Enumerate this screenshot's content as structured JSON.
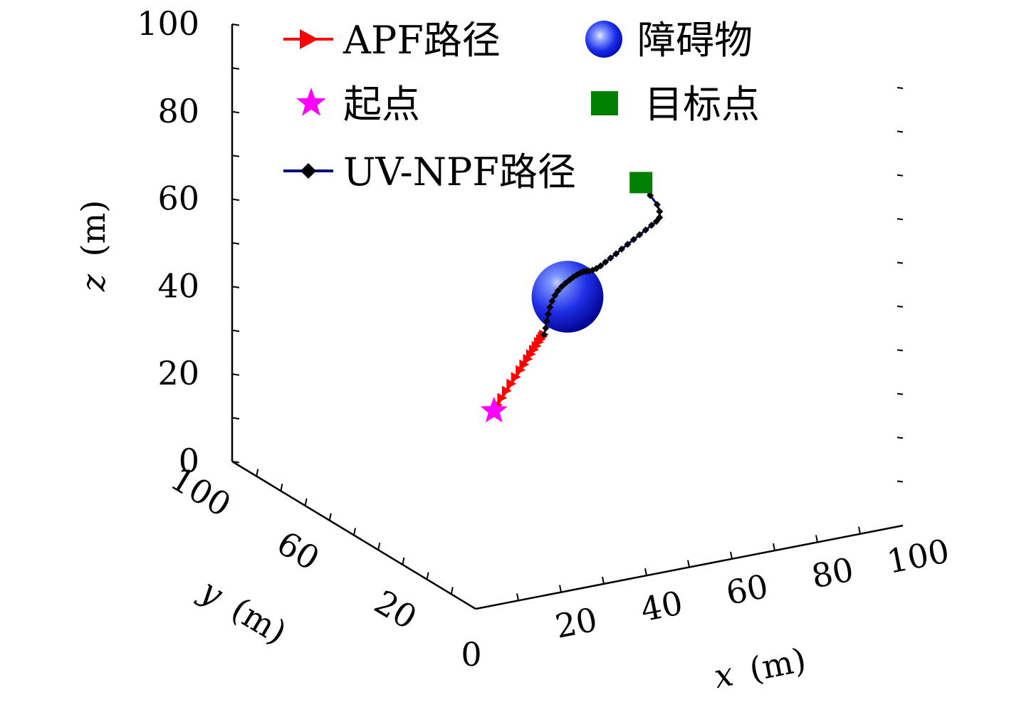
{
  "chart_data": {
    "type": "scatter",
    "projection": "3d",
    "axes": {
      "x": {
        "label_var": "x",
        "label_unit": "(m)",
        "ticks": [
          "0",
          "20",
          "40",
          "60",
          "80",
          "100"
        ],
        "range": [
          0,
          100
        ]
      },
      "y": {
        "label_var": "y",
        "label_unit": "(m)",
        "ticks": [
          "20",
          "60",
          "100"
        ],
        "range": [
          0,
          100
        ]
      },
      "z": {
        "label_var": "z",
        "label_unit": "(m)",
        "ticks": [
          "0",
          "20",
          "40",
          "60",
          "80",
          "100"
        ],
        "range": [
          0,
          100
        ]
      }
    },
    "legend": {
      "placement": "top",
      "entries": [
        {
          "key": "apf",
          "label": "APF路径",
          "color": "#ff0000",
          "marker": "triangle-right"
        },
        {
          "key": "obstacle",
          "label": "障碍物",
          "color": "#0000ee",
          "marker": "sphere"
        },
        {
          "key": "start",
          "label": "起点",
          "color": "#ff00ff",
          "marker": "star"
        },
        {
          "key": "goal",
          "label": "目标点",
          "color": "#008000",
          "marker": "square"
        },
        {
          "key": "uvnpf",
          "label": "UV-NPF路径",
          "color": "#000000",
          "line_color": "#000080",
          "marker": "diamond"
        }
      ]
    },
    "start": {
      "x": 10,
      "y": 10,
      "z": 40
    },
    "goal": {
      "x": 90,
      "y": 90,
      "z": 50
    },
    "obstacle": {
      "x": 50,
      "y": 50,
      "z": 45,
      "r": 12
    },
    "series": [
      {
        "name": "APF路径",
        "color": "#ff0000",
        "marker": "triangle-right",
        "points": [
          [
            12.0,
            12.0,
            40.3
          ],
          [
            14.5,
            14.5,
            40.6
          ],
          [
            17.0,
            17.0,
            40.9
          ],
          [
            19.5,
            19.5,
            41.2
          ],
          [
            22.0,
            22.0,
            41.4
          ],
          [
            24.5,
            24.5,
            41.7
          ],
          [
            26.5,
            26.5,
            41.9
          ],
          [
            28.5,
            28.5,
            42.1
          ],
          [
            30.2,
            30.2,
            42.3
          ],
          [
            31.8,
            31.8,
            42.5
          ],
          [
            33.2,
            33.2,
            42.6
          ],
          [
            34.5,
            34.5,
            42.8
          ],
          [
            35.6,
            35.6,
            42.9
          ],
          [
            36.5,
            36.5,
            43.0
          ],
          [
            37.2,
            37.2,
            43.1
          ]
        ]
      },
      {
        "name": "UV-NPF路径",
        "color": "#000000",
        "line_color": "#000080",
        "marker": "diamond",
        "points": [
          [
            37.2,
            37.2,
            43.1
          ],
          [
            37.6,
            37.2,
            44.5
          ],
          [
            37.9,
            37.3,
            46.0
          ],
          [
            38.3,
            37.4,
            47.5
          ],
          [
            38.8,
            37.6,
            48.9
          ],
          [
            39.5,
            37.9,
            50.1
          ],
          [
            40.4,
            38.3,
            51.1
          ],
          [
            41.4,
            38.8,
            51.8
          ],
          [
            42.6,
            39.4,
            52.3
          ],
          [
            43.9,
            40.1,
            52.6
          ],
          [
            45.3,
            40.9,
            52.8
          ],
          [
            46.7,
            41.8,
            52.9
          ],
          [
            48.1,
            42.8,
            52.8
          ],
          [
            49.5,
            43.9,
            52.6
          ],
          [
            50.9,
            45.1,
            52.2
          ],
          [
            52.3,
            46.4,
            51.6
          ],
          [
            53.8,
            47.8,
            50.9
          ],
          [
            55.4,
            49.2,
            50.3
          ],
          [
            57.1,
            50.6,
            49.9
          ],
          [
            58.9,
            52.0,
            49.7
          ],
          [
            60.8,
            53.4,
            49.7
          ],
          [
            62.8,
            54.8,
            49.8
          ],
          [
            64.9,
            56.2,
            49.9
          ],
          [
            67.0,
            57.6,
            50.1
          ],
          [
            69.2,
            59.0,
            50.3
          ],
          [
            71.4,
            60.4,
            50.5
          ],
          [
            73.6,
            61.8,
            50.7
          ],
          [
            75.8,
            63.2,
            50.9
          ],
          [
            78.0,
            64.6,
            51.1
          ],
          [
            79.8,
            65.8,
            51.2
          ],
          [
            81.8,
            68.0,
            51.0
          ],
          [
            83.8,
            71.5,
            50.8
          ],
          [
            85.8,
            76.0,
            50.5
          ],
          [
            87.6,
            82.0,
            50.2
          ],
          [
            89.0,
            87.0,
            50.0
          ],
          [
            90.0,
            90.0,
            50.0
          ]
        ]
      }
    ]
  }
}
